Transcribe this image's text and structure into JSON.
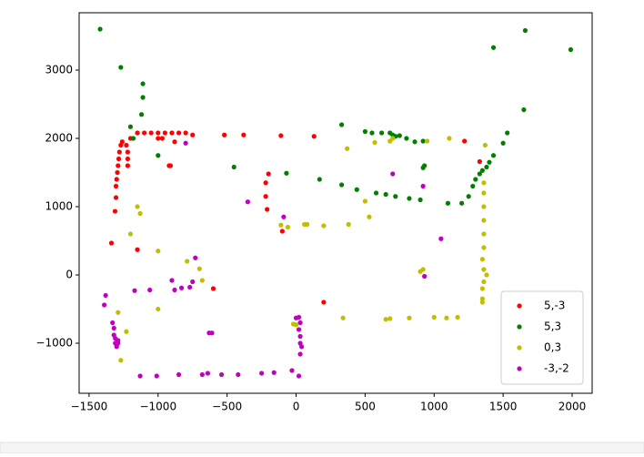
{
  "chart_data": {
    "type": "scatter",
    "xlim": [
      -1572,
      2145
    ],
    "ylim": [
      -1733,
      3840
    ],
    "xticks": [
      {
        "value": -1500,
        "label": "−1500"
      },
      {
        "value": -1000,
        "label": "−1000"
      },
      {
        "value": -500,
        "label": "−500"
      },
      0,
      500,
      1000,
      1500,
      2000
    ],
    "yticks": [
      {
        "value": -1000,
        "label": "−1000"
      },
      0,
      1000,
      2000,
      3000
    ],
    "legend": "lower right",
    "series": [
      {
        "name": "5,-3",
        "color": "#ff0000",
        "x": [
          -1338,
          -1312,
          -1305,
          -1305,
          -1300,
          -1295,
          -1290,
          -1285,
          -1280,
          -1270,
          -1260,
          -1230,
          -1220,
          -1220,
          -1220,
          -1150,
          -1200,
          -1150,
          -1100,
          -1050,
          -1000,
          -970,
          -1000,
          -950,
          -900,
          -920,
          -910,
          -880,
          -850,
          -800,
          -750,
          -600,
          -520,
          -380,
          -200,
          -220,
          -220,
          -210,
          -100,
          -110,
          130,
          200,
          1220,
          1330
        ],
        "y": [
          467,
          933,
          1133,
          1300,
          1400,
          1500,
          1600,
          1700,
          1800,
          1900,
          1950,
          1900,
          1800,
          1700,
          1600,
          370,
          2000,
          2080,
          2080,
          2080,
          2000,
          2000,
          2080,
          2080,
          2080,
          1600,
          1600,
          1950,
          2080,
          2080,
          2050,
          -200,
          2050,
          2050,
          1480,
          1350,
          1150,
          960,
          640,
          2040,
          2030,
          -400,
          1960,
          1660
        ]
      },
      {
        "name": "5,3",
        "color": "#008000",
        "x": [
          -1420,
          -1270,
          -1110,
          -1110,
          -1200,
          -1180,
          -1120,
          -1000,
          -450,
          -70,
          330,
          500,
          550,
          620,
          680,
          700,
          720,
          750,
          800,
          860,
          920,
          930,
          920,
          170,
          330,
          440,
          580,
          650,
          720,
          820,
          900,
          1100,
          1200,
          1250,
          1280,
          1300,
          1330,
          1350,
          1380,
          1400,
          1430,
          1500,
          1530,
          1650,
          1430,
          1660,
          1990
        ],
        "y": [
          3600,
          3040,
          2800,
          2600,
          2170,
          2000,
          2350,
          1750,
          1580,
          1490,
          2200,
          2100,
          2080,
          2080,
          2080,
          2050,
          2030,
          2040,
          2000,
          1950,
          1960,
          1600,
          1570,
          1400,
          1320,
          1250,
          1200,
          1180,
          1150,
          1120,
          1100,
          1050,
          1050,
          1150,
          1300,
          1400,
          1480,
          1530,
          1580,
          1650,
          1750,
          1930,
          2080,
          2420,
          3330,
          3580,
          3300
        ]
      },
      {
        "name": "0,3",
        "color": "#bfbf00",
        "x": [
          -1150,
          -1130,
          -1200,
          -1230,
          -1290,
          -1270,
          -1000,
          -1000,
          -790,
          -700,
          -680,
          -110,
          -60,
          60,
          80,
          200,
          380,
          500,
          530,
          370,
          570,
          680,
          700,
          950,
          1110,
          1370,
          1360,
          1360,
          1360,
          1360,
          1360,
          1360,
          1350,
          1360,
          1380,
          1360,
          1350,
          1350,
          900,
          920,
          820,
          1000,
          1090,
          1170,
          1350,
          340,
          650,
          680,
          -20,
          0
        ],
        "y": [
          1000,
          900,
          600,
          -830,
          -550,
          -1250,
          350,
          -500,
          200,
          90,
          -80,
          730,
          700,
          740,
          740,
          720,
          740,
          1080,
          850,
          1850,
          1940,
          1960,
          2000,
          1960,
          2000,
          1900,
          1350,
          1200,
          1000,
          800,
          600,
          400,
          230,
          80,
          0,
          -100,
          -200,
          -350,
          50,
          80,
          -630,
          -620,
          -630,
          -620,
          -400,
          -630,
          -650,
          -640,
          -720,
          -730
        ]
      },
      {
        "name": "-3,-2",
        "color": "#bf00bf",
        "x": [
          -1380,
          -1390,
          -1330,
          -1320,
          -1320,
          -1310,
          -1310,
          -1300,
          -1290,
          -1290,
          -1170,
          -1130,
          -1010,
          -850,
          -680,
          -640,
          -540,
          -420,
          -250,
          -160,
          -30,
          20,
          30,
          20,
          0,
          30,
          20,
          30,
          30,
          40,
          -1060,
          -900,
          -880,
          -830,
          -770,
          -750,
          -730,
          -610,
          -630,
          -350,
          -90,
          700,
          920,
          1050,
          930,
          -800
        ],
        "y": [
          -300,
          -440,
          -700,
          -780,
          -880,
          -930,
          -1000,
          -1050,
          -960,
          -1000,
          -230,
          -1480,
          -1480,
          -1460,
          -1460,
          -1440,
          -1460,
          -1460,
          -1440,
          -1430,
          -1400,
          -1480,
          -1160,
          -620,
          -630,
          -700,
          -800,
          -900,
          -1000,
          -1050,
          -220,
          -80,
          -220,
          -190,
          -180,
          -100,
          250,
          -850,
          -850,
          1070,
          850,
          1480,
          1300,
          530,
          -20,
          1930
        ]
      }
    ]
  }
}
